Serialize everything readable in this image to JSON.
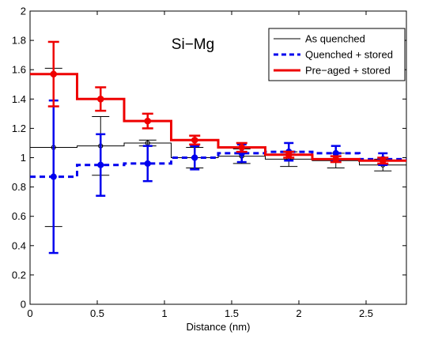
{
  "chart_data": {
    "type": "line",
    "title": "Si−Mg",
    "xlabel": "Distance (nm)",
    "ylabel": "",
    "xlim": [
      0,
      2.8
    ],
    "ylim": [
      0,
      2
    ],
    "xticks": [
      0,
      0.5,
      1,
      1.5,
      2,
      2.5
    ],
    "xtick_labels": [
      "0",
      "0.5",
      "1",
      "1.5",
      "2",
      "2.5"
    ],
    "yticks": [
      0,
      0.2,
      0.4,
      0.6,
      0.8,
      1,
      1.2,
      1.4,
      1.6,
      1.8,
      2
    ],
    "ytick_labels": [
      "0",
      "0.2",
      "0.4",
      "0.6",
      "0.8",
      "1",
      "1.2",
      "1.4",
      "1.6",
      "1.8",
      "2"
    ],
    "grid": false,
    "legend_position": "top-right",
    "bin_edges": [
      0,
      0.35,
      0.7,
      1.05,
      1.4,
      1.75,
      2.1,
      2.45,
      2.8
    ],
    "series": [
      {
        "name": "As quenched",
        "color": "#000000",
        "line_style": "solid",
        "x": [
          0.175,
          0.525,
          0.875,
          1.225,
          1.575,
          1.925,
          2.275,
          2.625
        ],
        "values": [
          1.07,
          1.08,
          1.1,
          1.0,
          1.01,
          0.99,
          0.98,
          0.95
        ],
        "err": [
          0.54,
          0.2,
          0.02,
          0.07,
          0.05,
          0.05,
          0.05,
          0.04
        ]
      },
      {
        "name": "Quenched + stored",
        "color": "#0000ee",
        "line_style": "dashed",
        "x": [
          0.175,
          0.525,
          0.875,
          1.225,
          1.575,
          1.925,
          2.275,
          2.625
        ],
        "values": [
          0.87,
          0.95,
          0.96,
          1.0,
          1.03,
          1.04,
          1.03,
          0.99
        ],
        "err": [
          0.52,
          0.21,
          0.12,
          0.08,
          0.06,
          0.06,
          0.05,
          0.04
        ]
      },
      {
        "name": "Pre−aged + stored",
        "color": "#ee0000",
        "line_style": "solid",
        "x": [
          0.175,
          0.525,
          0.875,
          1.225,
          1.575,
          1.925,
          2.275,
          2.625
        ],
        "values": [
          1.57,
          1.4,
          1.25,
          1.12,
          1.07,
          1.02,
          0.99,
          0.98
        ],
        "err": [
          0.22,
          0.08,
          0.05,
          0.03,
          0.03,
          0.02,
          0.02,
          0.02
        ]
      }
    ]
  }
}
